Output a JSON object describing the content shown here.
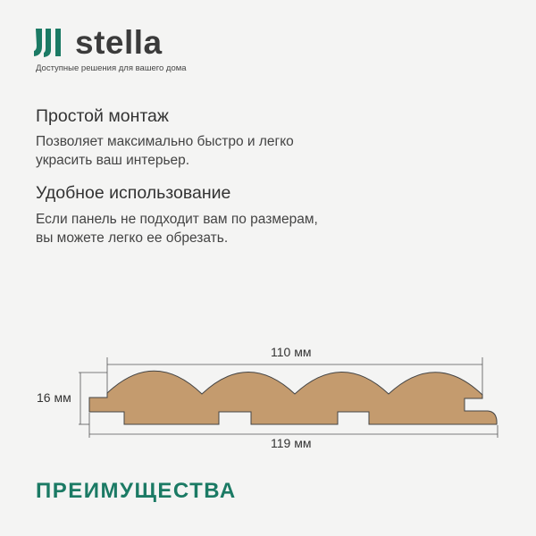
{
  "brand": {
    "name": "stella",
    "tagline": "Доступные решения для вашего дома",
    "color": "#1b7a64"
  },
  "features": [
    {
      "title": "Простой монтаж",
      "text": [
        "Позволяет максимально быстро и легко",
        "украсить ваш интерьер."
      ]
    },
    {
      "title": "Удобное использование",
      "text": [
        "Если панель не подходит вам по размерам,",
        "вы можете легко ее обрезать."
      ]
    }
  ],
  "diagram": {
    "width_visible": "110 мм",
    "width_total": "119 мм",
    "thickness": "16 мм",
    "fill_color": "#c49b6e"
  },
  "footer": {
    "title": "ПРЕИМУЩЕСТВА"
  }
}
